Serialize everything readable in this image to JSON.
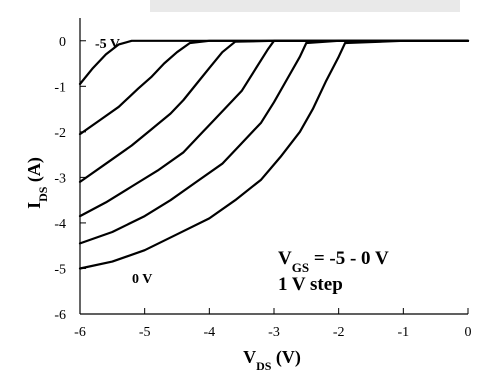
{
  "chart_data": {
    "type": "line",
    "xlabel": {
      "main": "V",
      "sub": "DS",
      "unit": " (V)"
    },
    "ylabel": {
      "main": "I",
      "sub": "DS",
      "unit": " (A)"
    },
    "xlim": [
      -6,
      0
    ],
    "ylim": [
      -6,
      0.5
    ],
    "xticks": [
      -6,
      -5,
      -4,
      -3,
      -2,
      -1,
      0
    ],
    "yticks": [
      0,
      -1,
      -2,
      -3,
      -4,
      -5,
      -6
    ],
    "grid": false,
    "annotations": {
      "top_curve_label": "-5 V",
      "bottom_curve_label": "0 V",
      "legend_line1": {
        "main": "V",
        "sub": "GS",
        "rest": " = -5 - 0 V"
      },
      "legend_line2": "1 V step"
    },
    "series": [
      {
        "x": [
          -6,
          -5.8,
          -5.6,
          -5.4,
          -5.2,
          -5.0,
          -4.8,
          -4.5,
          -4.0,
          -3.0,
          -2.0,
          -1.0,
          0
        ],
        "y": [
          -0.95,
          -0.6,
          -0.3,
          -0.08,
          0,
          0,
          0,
          0,
          0,
          0,
          0,
          0,
          0
        ]
      },
      {
        "x": [
          -6,
          -5.7,
          -5.4,
          -5.1,
          -4.9,
          -4.7,
          -4.5,
          -4.3,
          -4.0,
          -3.0,
          -2.0,
          -1.0,
          0
        ],
        "y": [
          -2.05,
          -1.75,
          -1.45,
          -1.05,
          -0.8,
          -0.5,
          -0.25,
          -0.05,
          0,
          0,
          0,
          0,
          0
        ]
      },
      {
        "x": [
          -6,
          -5.6,
          -5.2,
          -4.9,
          -4.6,
          -4.4,
          -4.2,
          -4.0,
          -3.8,
          -3.6,
          -3.0,
          -2.0,
          -1.0,
          0
        ],
        "y": [
          -3.1,
          -2.7,
          -2.3,
          -1.95,
          -1.6,
          -1.3,
          -0.95,
          -0.6,
          -0.25,
          -0.02,
          0,
          0,
          0,
          0
        ]
      },
      {
        "x": [
          -6,
          -5.6,
          -5.2,
          -4.8,
          -4.4,
          -4.1,
          -3.8,
          -3.5,
          -3.3,
          -3.1,
          -3.0,
          -2.0,
          -1.0,
          0
        ],
        "y": [
          -3.85,
          -3.55,
          -3.2,
          -2.85,
          -2.45,
          -2.0,
          -1.55,
          -1.1,
          -0.65,
          -0.2,
          0,
          0,
          0,
          0
        ]
      },
      {
        "x": [
          -6,
          -5.5,
          -5.0,
          -4.6,
          -4.2,
          -3.8,
          -3.5,
          -3.2,
          -3.0,
          -2.8,
          -2.6,
          -2.5,
          -2.0,
          -1.0,
          0
        ],
        "y": [
          -4.45,
          -4.2,
          -3.85,
          -3.5,
          -3.1,
          -2.7,
          -2.25,
          -1.8,
          -1.35,
          -0.85,
          -0.35,
          -0.05,
          0,
          0,
          0
        ]
      },
      {
        "x": [
          -6,
          -5.5,
          -5.0,
          -4.5,
          -4.0,
          -3.6,
          -3.2,
          -2.9,
          -2.6,
          -2.4,
          -2.2,
          -2.0,
          -1.9,
          -1.0,
          0
        ],
        "y": [
          -5.0,
          -4.85,
          -4.6,
          -4.25,
          -3.9,
          -3.5,
          -3.05,
          -2.55,
          -2.0,
          -1.5,
          -0.9,
          -0.35,
          -0.05,
          0,
          0
        ]
      }
    ]
  }
}
